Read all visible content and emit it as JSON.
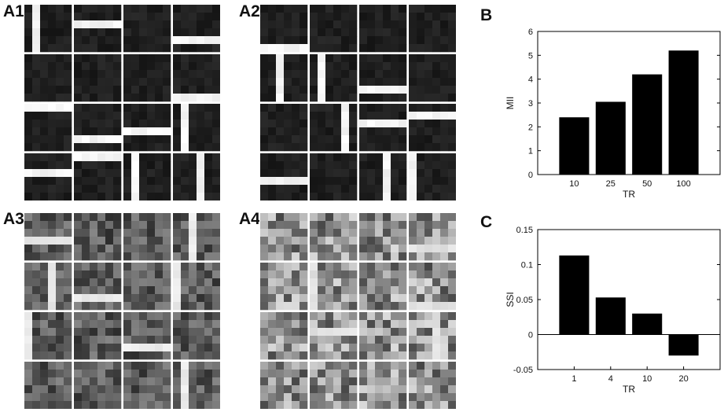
{
  "panels": {
    "a1": "A1",
    "a2": "A2",
    "a3": "A3",
    "a4": "A4",
    "b": "B",
    "c": "C"
  },
  "mosaics": [
    {
      "id": "A1",
      "style": "sparse-dark",
      "tiles": 16
    },
    {
      "id": "A2",
      "style": "sparse-dark",
      "tiles": 16
    },
    {
      "id": "A3",
      "style": "mixed",
      "tiles": 16
    },
    {
      "id": "A4",
      "style": "dense-mixed",
      "tiles": 16
    }
  ],
  "chart_data": [
    {
      "type": "bar",
      "panel": "B",
      "categories": [
        "10",
        "25",
        "50",
        "100"
      ],
      "values": [
        2.4,
        3.05,
        4.2,
        5.2
      ],
      "xlabel": "TR",
      "ylabel": "MII",
      "ylim": [
        0,
        6
      ],
      "yticks": [
        "0",
        "1",
        "2",
        "3",
        "4",
        "5",
        "6"
      ],
      "bar_color": "#000000",
      "grid": false
    },
    {
      "type": "bar",
      "panel": "C",
      "categories": [
        "1",
        "4",
        "10",
        "20"
      ],
      "values": [
        0.113,
        0.053,
        0.03,
        -0.03
      ],
      "xlabel": "TR",
      "ylabel": "SSI",
      "ylim": [
        -0.05,
        0.15
      ],
      "yticks": [
        "-0.05",
        "0",
        "0.05",
        "0.1",
        "0.15"
      ],
      "zero_line": true,
      "bar_color": "#000000",
      "grid": false
    }
  ]
}
